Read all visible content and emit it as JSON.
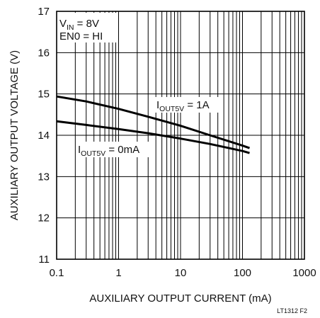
{
  "chart_data": {
    "type": "line",
    "title": "",
    "xlabel": "AUXILIARY OUTPUT CURRENT (mA)",
    "ylabel": "AUXILIARY OUTPUT VOLTAGE (V)",
    "xscale": "log",
    "xlim": [
      0.1,
      1000
    ],
    "ylim": [
      11,
      17
    ],
    "grid": true,
    "x_ticks": [
      "0.1",
      "1",
      "10",
      "100",
      "1000"
    ],
    "y_ticks": [
      "11",
      "12",
      "13",
      "14",
      "15",
      "16",
      "17"
    ],
    "conditions": {
      "vin": {
        "main": "V",
        "sub": "IN",
        "rest": " = 8V"
      },
      "en0": "EN0 = HI"
    },
    "series": [
      {
        "label": {
          "main": "I",
          "sub": "OUT5V",
          "rest": " = 1A"
        },
        "x": [
          0.1,
          0.3,
          1,
          3,
          10,
          30,
          100,
          130
        ],
        "y": [
          14.94,
          14.82,
          14.64,
          14.45,
          14.23,
          14.0,
          13.75,
          13.69
        ]
      },
      {
        "label": {
          "main": "I",
          "sub": "OUT5V",
          "rest": " = 0mA"
        },
        "x": [
          0.1,
          0.3,
          1,
          3,
          10,
          30,
          100,
          130
        ],
        "y": [
          14.34,
          14.25,
          14.15,
          14.05,
          13.92,
          13.79,
          13.62,
          13.57
        ]
      }
    ],
    "figure_code": "LT1312 F2"
  }
}
